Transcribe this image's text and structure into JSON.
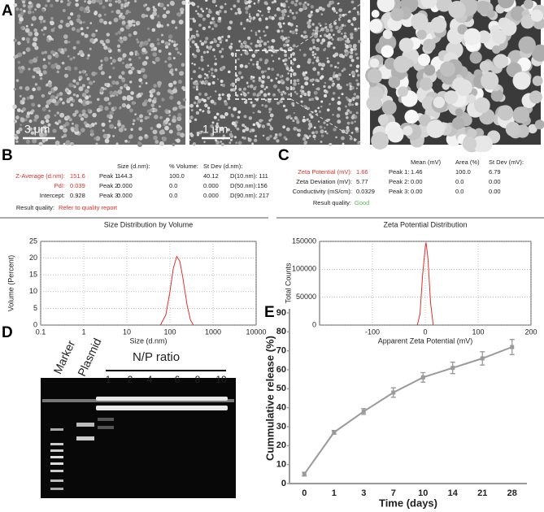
{
  "panels": {
    "a": "A",
    "b": "B",
    "c": "C",
    "d": "D",
    "e": "E"
  },
  "sem": {
    "scale_bars": [
      "3 μm",
      "1 μm"
    ]
  },
  "dls": {
    "summary": [
      [
        "Z-Average (d.nm):",
        "151.6"
      ],
      [
        "PdI:",
        "0.039"
      ],
      [
        "Intercept:",
        "0.928"
      ]
    ],
    "quality_label": "Result quality:",
    "quality": "Refer to quality report",
    "headers": [
      "Size (d.nm):",
      "% Volume:",
      "St Dev (d.nm):"
    ],
    "peaks": [
      [
        "Peak 1:",
        "144.3",
        "100.0",
        "40.12",
        "D(10.nm): 111"
      ],
      [
        "Peak 2:",
        "0.000",
        "0.0",
        "0.000",
        "D(50.nm):156"
      ],
      [
        "Peak 3:",
        "0.000",
        "0.0",
        "0.000",
        "D(90.nm): 217"
      ]
    ]
  },
  "zeta": {
    "summary": [
      [
        "Zeta Potential (mV):",
        "1.66"
      ],
      [
        "Zeta Deviation (mV):",
        "5.77"
      ],
      [
        "Conductivity (mS/cm):",
        "0.0329"
      ]
    ],
    "quality_label": "Result quality:",
    "quality": "Good",
    "headers": [
      "Mean (mV)",
      "Area (%)",
      "St Dev (mV):"
    ],
    "peaks": [
      [
        "Peak 1:",
        "1.46",
        "100.0",
        "6.79"
      ],
      [
        "Peak 2:",
        "0.00",
        "0.0",
        "0.00"
      ],
      [
        "Peak 3:",
        "0.00",
        "0.0",
        "0.00"
      ]
    ]
  },
  "gel": {
    "lanes": [
      "Marker",
      "Plasmid"
    ],
    "np_title": "N/P ratio",
    "np_lanes": [
      "1",
      "2",
      "4",
      "6",
      "8",
      "10"
    ]
  },
  "chart_data": [
    {
      "type": "line",
      "title": "Size Distribution by Volume",
      "x_label": "Size (d.nm)",
      "y_label": "Volume (Percent)",
      "x_log": true,
      "xlim": [
        0.1,
        10000
      ],
      "xticks": [
        0.1,
        1,
        10,
        100,
        1000,
        10000
      ],
      "ylim": [
        0,
        25
      ],
      "yticks": [
        0,
        5,
        10,
        15,
        20,
        25
      ],
      "grid": true,
      "series": [
        {
          "color": "#e0302b",
          "x": [
            60,
            80,
            100,
            120,
            144,
            170,
            200,
            250,
            300,
            350
          ],
          "values": [
            0,
            3,
            10,
            17,
            20.5,
            19,
            14,
            6,
            1.5,
            0
          ]
        }
      ]
    },
    {
      "type": "line",
      "title": "Zeta Potential Distribution",
      "x_label": "Apparent Zeta Potential (mV)",
      "y_label": "Total Counts",
      "xlim": [
        -200,
        200
      ],
      "xticks": [
        -100,
        0,
        100,
        200
      ],
      "ylim": [
        0,
        150000
      ],
      "yticks": [
        0,
        50000,
        100000,
        150000
      ],
      "grid": true,
      "series": [
        {
          "color": "#e0302b",
          "x": [
            -15,
            -10,
            -5,
            0,
            1.5,
            5,
            10,
            15
          ],
          "values": [
            0,
            20000,
            90000,
            140000,
            148000,
            120000,
            40000,
            0
          ]
        }
      ]
    },
    {
      "type": "line",
      "x_label": "Time (days)",
      "y_label": "Cummulative release (%)",
      "categories": [
        "0",
        "1",
        "3",
        "7",
        "10",
        "14",
        "21",
        "28"
      ],
      "ylim": [
        0,
        90
      ],
      "yticks": [
        0,
        10,
        20,
        30,
        40,
        50,
        60,
        70,
        80,
        90
      ],
      "grid": false,
      "series": [
        {
          "color": "#9a9a9a",
          "values": [
            5,
            27,
            38,
            48,
            56,
            61,
            66,
            72
          ],
          "errors": [
            1,
            1,
            1.5,
            2.5,
            2.5,
            3,
            3.5,
            4
          ]
        }
      ]
    }
  ]
}
